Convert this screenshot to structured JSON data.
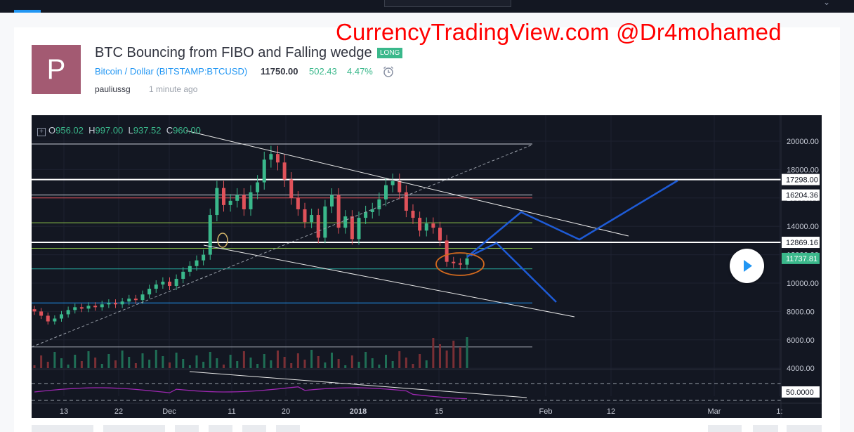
{
  "watermark": "CurrencyTradingView.com @Dr4mohamed",
  "idea": {
    "avatar_letter": "P",
    "title": "BTC Bouncing from FIBO and Falling wedge",
    "badge": "LONG",
    "symbol_name": "Bitcoin / Dollar",
    "symbol_open": "(",
    "symbol_ticker": "BITSTAMP:BTCUSD",
    "symbol_close": ")",
    "price": "11750.00",
    "change": "502.43",
    "change_pct": "4.47%",
    "author": "pauliussg",
    "time": "1 minute ago"
  },
  "ohlc": {
    "o_label": "O",
    "o": "956.02",
    "h_label": "H",
    "h": "997.00",
    "l_label": "L",
    "l": "937.52",
    "c_label": "C",
    "c": "960.00"
  },
  "colors": {
    "up": "#3ab88b",
    "down": "#e0525a",
    "bg": "#131722",
    "accent": "#2196f3",
    "watermark": "#ff0000"
  },
  "chart_data": {
    "type": "candlestick",
    "y_ticks": [
      "20000.00",
      "18000.00",
      "16000.00",
      "14000.00",
      "12000.00",
      "10000.00",
      "8000.00",
      "6000.00",
      "4000.00"
    ],
    "price_labels": [
      "17298.00",
      "16204.36",
      "12869.16",
      "11737.81"
    ],
    "x_ticks": [
      "13",
      "22",
      "Dec",
      "11",
      "20",
      "2018",
      "15",
      "Feb",
      "12",
      "Mar",
      "1:"
    ],
    "rsi_label": "50.0000",
    "closes": [
      8000,
      7700,
      7300,
      7500,
      7800,
      8100,
      8300,
      8200,
      8400,
      8300,
      8500,
      8600,
      8500,
      8700,
      8900,
      8800,
      9200,
      9600,
      9900,
      10100,
      9800,
      10300,
      10800,
      11200,
      11600,
      12000,
      14800,
      16700,
      15500,
      15800,
      16200,
      15200,
      16400,
      17100,
      18700,
      19100,
      18500,
      17300,
      16000,
      15200,
      14300,
      14800,
      13200,
      15400,
      16200,
      13900,
      14700,
      13100,
      14600,
      15000,
      15200,
      15900,
      16900,
      17200,
      16400,
      15100,
      14600,
      13700,
      14200,
      13900,
      13000,
      11500,
      11400,
      11300,
      11737
    ],
    "annotations": [
      "fibonacci-retracement",
      "falling-wedge",
      "projection-paths",
      "circle-highlight"
    ]
  },
  "icons": {
    "alarm": "alarm-icon",
    "play": "play-icon",
    "plus": "plus-icon"
  }
}
